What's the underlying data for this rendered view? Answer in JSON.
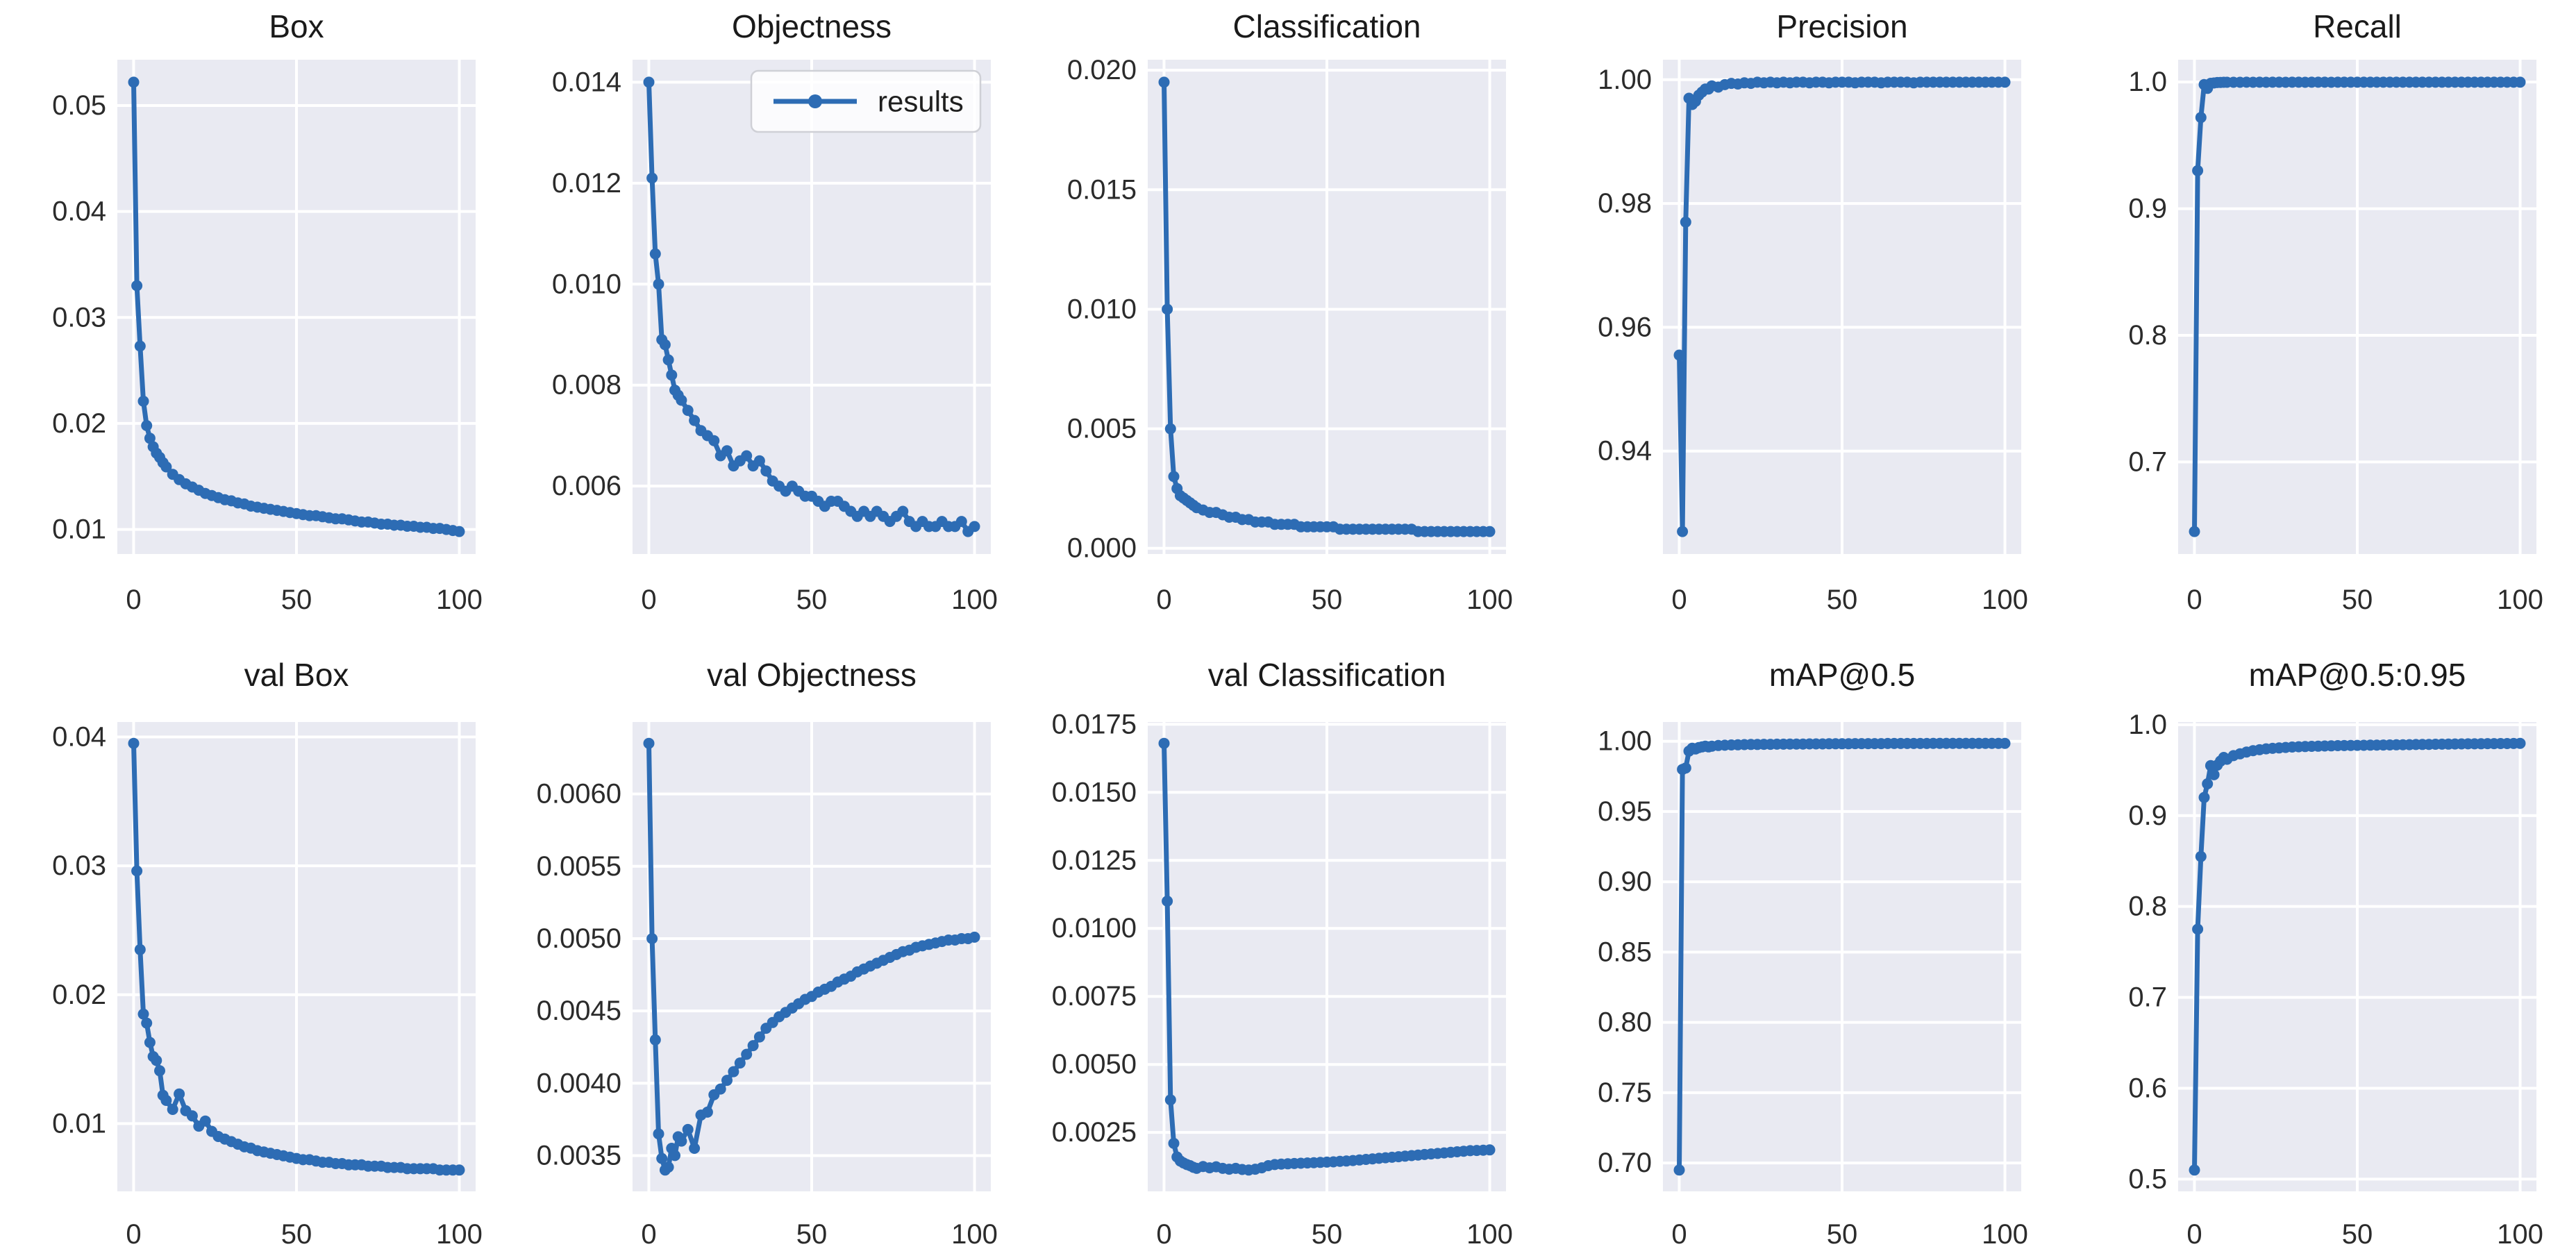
{
  "figure": {
    "page_bg": "#ffffff",
    "axes_bg": "#e9eaf2",
    "grid_color": "#ffffff",
    "line_color": "#2d6cb4",
    "title_color": "#1a1a1a",
    "tick_color": "#2b2b2b",
    "legend_bg": "rgba(255,255,255,0.8)",
    "legend_border": "#cfd0d6"
  },
  "legend": {
    "label": "results"
  },
  "x_common": [
    0,
    1,
    2,
    3,
    4,
    5,
    6,
    7,
    8,
    9,
    10,
    12,
    14,
    16,
    18,
    20,
    22,
    24,
    26,
    28,
    30,
    32,
    34,
    36,
    38,
    40,
    42,
    44,
    46,
    48,
    50,
    52,
    54,
    56,
    58,
    60,
    62,
    64,
    66,
    68,
    70,
    72,
    74,
    76,
    78,
    80,
    82,
    84,
    86,
    88,
    90,
    92,
    94,
    96,
    98,
    100
  ],
  "chart_data": [
    {
      "type": "line",
      "title": "Box",
      "xlabel": "",
      "ylabel": "",
      "grid": true,
      "xlim": [
        -5,
        105
      ],
      "ylim": [
        0.00768,
        0.05432
      ],
      "xtick_values": [
        0,
        50,
        100
      ],
      "xtick_labels": [
        "0",
        "50",
        "100"
      ],
      "ytick_values": [
        0.01,
        0.02,
        0.03,
        0.04,
        0.05
      ],
      "ytick_labels": [
        "0.01",
        "0.02",
        "0.03",
        "0.04",
        "0.05"
      ],
      "y": [
        0.0522,
        0.033,
        0.0273,
        0.0221,
        0.0198,
        0.0186,
        0.0178,
        0.0172,
        0.0168,
        0.0163,
        0.0159,
        0.0152,
        0.0147,
        0.0143,
        0.014,
        0.0137,
        0.0134,
        0.0132,
        0.013,
        0.0128,
        0.0127,
        0.0125,
        0.0124,
        0.0122,
        0.0121,
        0.012,
        0.0119,
        0.0118,
        0.0117,
        0.0116,
        0.0115,
        0.0114,
        0.0113,
        0.0113,
        0.0112,
        0.0111,
        0.011,
        0.011,
        0.0109,
        0.0108,
        0.0107,
        0.0107,
        0.0106,
        0.0105,
        0.0105,
        0.0104,
        0.0104,
        0.0103,
        0.0103,
        0.0102,
        0.0102,
        0.0101,
        0.0101,
        0.01,
        0.0099,
        0.0098
      ]
    },
    {
      "type": "line",
      "title": "Objectness",
      "xlabel": "",
      "ylabel": "",
      "grid": true,
      "legend": "results",
      "xlim": [
        -5,
        105
      ],
      "ylim": [
        0.004655,
        0.014445
      ],
      "xtick_values": [
        0,
        50,
        100
      ],
      "xtick_labels": [
        "0",
        "50",
        "100"
      ],
      "ytick_values": [
        0.006,
        0.008,
        0.01,
        0.012,
        0.014
      ],
      "ytick_labels": [
        "0.006",
        "0.008",
        "0.010",
        "0.012",
        "0.014"
      ],
      "y": [
        0.014,
        0.0121,
        0.0106,
        0.01,
        0.0089,
        0.0088,
        0.0085,
        0.0082,
        0.0079,
        0.0078,
        0.0077,
        0.0075,
        0.0073,
        0.0071,
        0.007,
        0.0069,
        0.0066,
        0.0067,
        0.0064,
        0.0065,
        0.0066,
        0.0064,
        0.0065,
        0.0063,
        0.0061,
        0.006,
        0.0059,
        0.006,
        0.0059,
        0.0058,
        0.0058,
        0.0057,
        0.0056,
        0.0057,
        0.0057,
        0.0056,
        0.0055,
        0.0054,
        0.0055,
        0.0054,
        0.0055,
        0.0054,
        0.0053,
        0.0054,
        0.0055,
        0.0053,
        0.0052,
        0.0053,
        0.0052,
        0.0052,
        0.0053,
        0.0052,
        0.0052,
        0.0053,
        0.0051,
        0.0052
      ]
    },
    {
      "type": "line",
      "title": "Classification",
      "xlabel": "",
      "ylabel": "",
      "grid": true,
      "xlim": [
        -5,
        105
      ],
      "ylim": [
        -0.00024,
        0.02044
      ],
      "xtick_values": [
        0,
        50,
        100
      ],
      "xtick_labels": [
        "0",
        "50",
        "100"
      ],
      "ytick_values": [
        0.0,
        0.005,
        0.01,
        0.015,
        0.02
      ],
      "ytick_labels": [
        "0.000",
        "0.005",
        "0.010",
        "0.015",
        "0.020"
      ],
      "y": [
        0.0195,
        0.01,
        0.005,
        0.003,
        0.0025,
        0.0022,
        0.0021,
        0.002,
        0.0019,
        0.0018,
        0.0017,
        0.0016,
        0.0015,
        0.0015,
        0.0014,
        0.0013,
        0.0013,
        0.0012,
        0.0012,
        0.0011,
        0.0011,
        0.0011,
        0.001,
        0.001,
        0.001,
        0.001,
        0.0009,
        0.0009,
        0.0009,
        0.0009,
        0.0009,
        0.0009,
        0.0008,
        0.0008,
        0.0008,
        0.0008,
        0.0008,
        0.0008,
        0.0008,
        0.0008,
        0.0008,
        0.0008,
        0.0008,
        0.0008,
        0.0007,
        0.0007,
        0.0007,
        0.0007,
        0.0007,
        0.0007,
        0.0007,
        0.0007,
        0.0007,
        0.0007,
        0.0007,
        0.0007
      ]
    },
    {
      "type": "line",
      "title": "Precision",
      "xlabel": "",
      "ylabel": "",
      "grid": true,
      "xlim": [
        -5,
        105
      ],
      "ylim": [
        0.92337,
        1.00323
      ],
      "xtick_values": [
        0,
        50,
        100
      ],
      "xtick_labels": [
        "0",
        "50",
        "100"
      ],
      "ytick_values": [
        0.94,
        0.96,
        0.98,
        1.0
      ],
      "ytick_labels": [
        "0.94",
        "0.96",
        "0.98",
        "1.00"
      ],
      "y": [
        0.9555,
        0.927,
        0.977,
        0.997,
        0.996,
        0.9965,
        0.9975,
        0.998,
        0.9985,
        0.9985,
        0.999,
        0.9988,
        0.9992,
        0.9994,
        0.9993,
        0.9995,
        0.9994,
        0.9996,
        0.9995,
        0.9996,
        0.9995,
        0.9996,
        0.9995,
        0.9996,
        0.9996,
        0.9995,
        0.9996,
        0.9996,
        0.9995,
        0.9996,
        0.9996,
        0.9996,
        0.9995,
        0.9996,
        0.9996,
        0.9996,
        0.9995,
        0.9996,
        0.9996,
        0.9996,
        0.9996,
        0.9995,
        0.9996,
        0.9996,
        0.9996,
        0.9996,
        0.9996,
        0.9996,
        0.9996,
        0.9996,
        0.9996,
        0.9996,
        0.9996,
        0.9996,
        0.9996,
        0.9996
      ]
    },
    {
      "type": "line",
      "title": "Recall",
      "xlabel": "",
      "ylabel": "",
      "grid": true,
      "xlim": [
        -5,
        105
      ],
      "ylim": [
        0.627255,
        1.017645
      ],
      "xtick_values": [
        0,
        50,
        100
      ],
      "xtick_labels": [
        "0",
        "50",
        "100"
      ],
      "ytick_values": [
        0.7,
        0.8,
        0.9,
        1.0
      ],
      "ytick_labels": [
        "0.7",
        "0.8",
        "0.9",
        "1.0"
      ],
      "y": [
        0.645,
        0.93,
        0.972,
        0.998,
        0.995,
        0.999,
        0.9993,
        0.9996,
        0.9997,
        0.9998,
        0.9998,
        0.9998,
        0.9998,
        0.9999,
        0.9998,
        0.9999,
        0.9998,
        0.9999,
        0.9999,
        0.9998,
        0.9999,
        0.9999,
        0.9998,
        0.9999,
        0.9999,
        0.9999,
        0.9998,
        0.9999,
        0.9999,
        0.9999,
        0.9999,
        0.9999,
        0.9999,
        0.9999,
        0.9999,
        0.9999,
        0.9999,
        0.9999,
        0.9999,
        0.9999,
        0.9999,
        0.9999,
        0.9999,
        0.9999,
        0.9999,
        0.9999,
        0.9999,
        0.9999,
        0.9999,
        0.9999,
        0.9999,
        0.9999,
        0.9999,
        0.9999,
        0.9999,
        0.9999
      ]
    },
    {
      "type": "line",
      "title": "val Box",
      "xlabel": "",
      "ylabel": "",
      "grid": true,
      "xlim": [
        -5,
        105
      ],
      "ylim": [
        0.004745,
        0.041155
      ],
      "xtick_values": [
        0,
        50,
        100
      ],
      "xtick_labels": [
        "0",
        "50",
        "100"
      ],
      "ytick_values": [
        0.01,
        0.02,
        0.03,
        0.04
      ],
      "ytick_labels": [
        "0.01",
        "0.02",
        "0.03",
        "0.04"
      ],
      "y": [
        0.0395,
        0.0296,
        0.0235,
        0.0185,
        0.0178,
        0.0163,
        0.0152,
        0.0149,
        0.0141,
        0.0122,
        0.0118,
        0.0111,
        0.0123,
        0.011,
        0.0106,
        0.0098,
        0.0102,
        0.0094,
        0.009,
        0.0088,
        0.0086,
        0.0084,
        0.0082,
        0.0081,
        0.0079,
        0.0078,
        0.0077,
        0.0076,
        0.0075,
        0.0074,
        0.0073,
        0.0072,
        0.0072,
        0.0071,
        0.007,
        0.007,
        0.0069,
        0.0069,
        0.0068,
        0.0068,
        0.0068,
        0.0067,
        0.0067,
        0.0067,
        0.0066,
        0.0066,
        0.0066,
        0.0065,
        0.0065,
        0.0065,
        0.0065,
        0.0065,
        0.0064,
        0.0064,
        0.0064,
        0.0064
      ]
    },
    {
      "type": "line",
      "title": "val Objectness",
      "xlabel": "",
      "ylabel": "",
      "grid": true,
      "xlim": [
        -5,
        105
      ],
      "ylim": [
        0.0032525,
        0.0064975
      ],
      "xtick_values": [
        0,
        50,
        100
      ],
      "xtick_labels": [
        "0",
        "50",
        "100"
      ],
      "ytick_values": [
        0.0035,
        0.004,
        0.0045,
        0.005,
        0.0055,
        0.006
      ],
      "ytick_labels": [
        "0.0035",
        "0.0040",
        "0.0045",
        "0.0050",
        "0.0055",
        "0.0060"
      ],
      "y": [
        0.00635,
        0.005,
        0.0043,
        0.00365,
        0.00348,
        0.0034,
        0.00342,
        0.00355,
        0.0035,
        0.00363,
        0.0036,
        0.00368,
        0.00355,
        0.00378,
        0.0038,
        0.00392,
        0.00396,
        0.00402,
        0.00408,
        0.00414,
        0.0042,
        0.00426,
        0.00432,
        0.00438,
        0.00442,
        0.00446,
        0.00449,
        0.00452,
        0.00455,
        0.00458,
        0.0046,
        0.00463,
        0.00465,
        0.00467,
        0.0047,
        0.00472,
        0.00474,
        0.00477,
        0.00479,
        0.00481,
        0.00483,
        0.00485,
        0.00487,
        0.00489,
        0.00491,
        0.00492,
        0.00494,
        0.00495,
        0.00496,
        0.00497,
        0.00498,
        0.00499,
        0.00499,
        0.005,
        0.005,
        0.00501
      ]
    },
    {
      "type": "line",
      "title": "val Classification",
      "xlabel": "",
      "ylabel": "",
      "grid": true,
      "xlim": [
        -5,
        105
      ],
      "ylim": [
        0.000336,
        0.017584
      ],
      "xtick_values": [
        0,
        50,
        100
      ],
      "xtick_labels": [
        "0",
        "50",
        "100"
      ],
      "ytick_values": [
        0.0025,
        0.005,
        0.0075,
        0.01,
        0.0125,
        0.015,
        0.0175
      ],
      "ytick_labels": [
        "0.0025",
        "0.0050",
        "0.0075",
        "0.0100",
        "0.0125",
        "0.0150",
        "0.0175"
      ],
      "y": [
        0.0168,
        0.011,
        0.0037,
        0.0021,
        0.0016,
        0.00145,
        0.00138,
        0.00132,
        0.00128,
        0.00122,
        0.00118,
        0.00125,
        0.0012,
        0.00124,
        0.00118,
        0.00115,
        0.00118,
        0.00114,
        0.00112,
        0.00115,
        0.0012,
        0.00128,
        0.00132,
        0.00134,
        0.00135,
        0.00136,
        0.00137,
        0.00138,
        0.00139,
        0.0014,
        0.00141,
        0.00142,
        0.00144,
        0.00145,
        0.00147,
        0.00149,
        0.00151,
        0.00153,
        0.00155,
        0.00157,
        0.00159,
        0.00161,
        0.00163,
        0.00165,
        0.00167,
        0.00169,
        0.00171,
        0.00173,
        0.00175,
        0.00177,
        0.00179,
        0.00181,
        0.00183,
        0.00184,
        0.00185,
        0.00186
      ]
    },
    {
      "type": "line",
      "title": "mAP@0.5",
      "xlabel": "",
      "ylabel": "",
      "grid": true,
      "xlim": [
        -5,
        105
      ],
      "ylim": [
        0.679825,
        1.013675
      ],
      "xtick_values": [
        0,
        50,
        100
      ],
      "xtick_labels": [
        "0",
        "50",
        "100"
      ],
      "ytick_values": [
        0.7,
        0.75,
        0.8,
        0.85,
        0.9,
        0.95,
        1.0
      ],
      "ytick_labels": [
        "0.70",
        "0.75",
        "0.80",
        "0.85",
        "0.90",
        "0.95",
        "1.00"
      ],
      "y": [
        0.695,
        0.98,
        0.981,
        0.993,
        0.995,
        0.9945,
        0.9955,
        0.996,
        0.9965,
        0.996,
        0.9965,
        0.997,
        0.9972,
        0.9974,
        0.9975,
        0.9976,
        0.9977,
        0.9977,
        0.9978,
        0.9978,
        0.9979,
        0.9979,
        0.998,
        0.998,
        0.998,
        0.9981,
        0.9981,
        0.9981,
        0.9982,
        0.9982,
        0.9982,
        0.9982,
        0.9983,
        0.9983,
        0.9983,
        0.9983,
        0.9983,
        0.9984,
        0.9984,
        0.9984,
        0.9984,
        0.9984,
        0.9984,
        0.9984,
        0.9985,
        0.9985,
        0.9985,
        0.9985,
        0.9985,
        0.9985,
        0.9985,
        0.9985,
        0.9985,
        0.9985,
        0.9985,
        0.9985
      ]
    },
    {
      "type": "line",
      "title": "mAP@0.5:0.95",
      "xlabel": "",
      "ylabel": "",
      "grid": true,
      "xlim": [
        -5,
        105
      ],
      "ylim": [
        0.486525,
        1.002975
      ],
      "xtick_values": [
        0,
        50,
        100
      ],
      "xtick_labels": [
        "0",
        "50",
        "100"
      ],
      "ytick_values": [
        0.5,
        0.6,
        0.7,
        0.8,
        0.9,
        1.0
      ],
      "ytick_labels": [
        "0.5",
        "0.6",
        "0.7",
        "0.8",
        "0.9",
        "1.0"
      ],
      "y": [
        0.51,
        0.775,
        0.855,
        0.92,
        0.935,
        0.955,
        0.945,
        0.9555,
        0.96,
        0.964,
        0.962,
        0.966,
        0.968,
        0.97,
        0.9715,
        0.9725,
        0.9735,
        0.974,
        0.9745,
        0.975,
        0.9755,
        0.9758,
        0.976,
        0.9762,
        0.9764,
        0.9766,
        0.9768,
        0.977,
        0.9771,
        0.9772,
        0.9773,
        0.9774,
        0.9775,
        0.9776,
        0.9777,
        0.9778,
        0.9779,
        0.978,
        0.9781,
        0.9782,
        0.9783,
        0.9784,
        0.9785,
        0.9786,
        0.9787,
        0.9788,
        0.9789,
        0.979,
        0.979,
        0.9791,
        0.9792,
        0.9792,
        0.9793,
        0.9793,
        0.9794,
        0.9795
      ]
    }
  ]
}
